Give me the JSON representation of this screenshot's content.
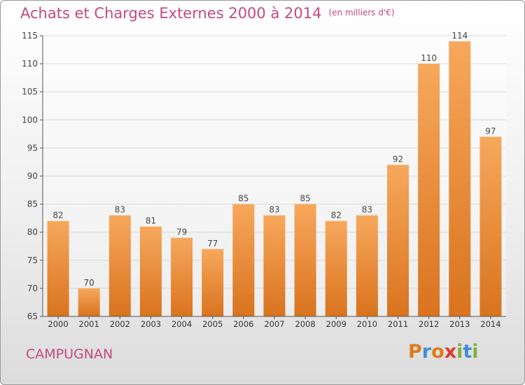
{
  "header": {
    "title": "Achats et Charges Externes 2000 à 2014",
    "unit": "(en milliers d'€)"
  },
  "footer": {
    "commune": "CAMPUGNAN",
    "logo_letters": [
      "P",
      "r",
      "o",
      "x",
      "i",
      "t",
      "i"
    ],
    "logo_colors": [
      "#e07a1c",
      "#3f8fd0",
      "#e07a1c",
      "#d93c2f",
      "#7fb23c",
      "#3f8fd0",
      "#7fb23c"
    ]
  },
  "colors": {
    "bar_top": "#f7a85c",
    "bar_bottom": "#d9731e",
    "title": "#c24a82",
    "grid": "#d8d8d8"
  },
  "chart_data": {
    "type": "bar",
    "categories": [
      "2000",
      "2001",
      "2002",
      "2003",
      "2004",
      "2005",
      "2006",
      "2007",
      "2008",
      "2009",
      "2010",
      "2011",
      "2012",
      "2013",
      "2014"
    ],
    "values": [
      82,
      70,
      83,
      81,
      79,
      77,
      85,
      83,
      85,
      82,
      83,
      92,
      110,
      114,
      97
    ],
    "ylim": [
      65,
      115
    ],
    "yticks": [
      65,
      70,
      75,
      80,
      85,
      90,
      95,
      100,
      105,
      110,
      115
    ],
    "grid": true,
    "data_labels": true
  }
}
